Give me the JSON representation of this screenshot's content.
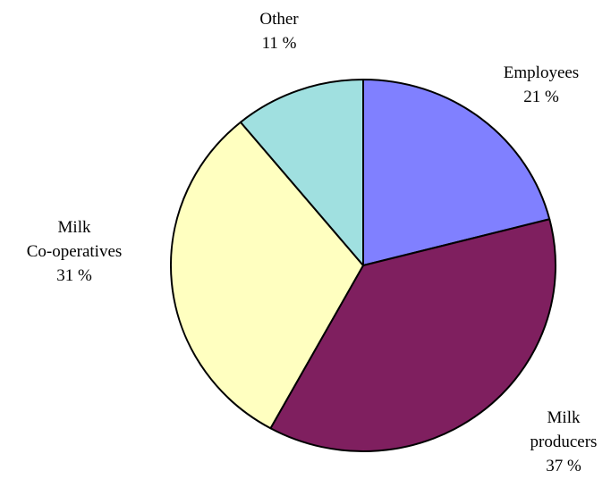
{
  "chart_data": {
    "type": "pie",
    "title": "",
    "slices": [
      {
        "name": "Employees",
        "label_lines": [
          "Employees"
        ],
        "value": 21,
        "value_label": "21 %",
        "color": "#8080ff"
      },
      {
        "name": "Milk producers",
        "label_lines": [
          "Milk",
          "producers"
        ],
        "value": 37,
        "value_label": "37 %",
        "color": "#7f1f5f"
      },
      {
        "name": "Milk Co-operatives",
        "label_lines": [
          "Milk",
          "Co-operatives"
        ],
        "value": 31,
        "value_label": "31 %",
        "color": "#ffffc0"
      },
      {
        "name": "Other",
        "label_lines": [
          "Other"
        ],
        "value": 11,
        "value_label": "11 %",
        "color": "#a0e0e0"
      }
    ],
    "start_angle": "12 o'clock",
    "direction": "clockwise",
    "legend": "none"
  }
}
